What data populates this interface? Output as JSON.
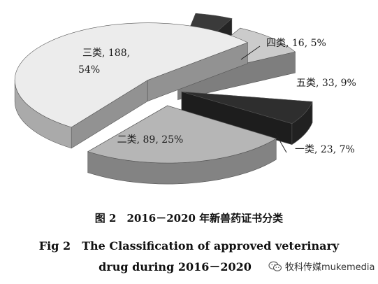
{
  "chart_data": {
    "type": "pie",
    "title": "",
    "three_d": true,
    "slices": [
      {
        "label": "一类, 23, 7%",
        "category": "一类",
        "value": 23,
        "percent": 7,
        "color": "#2e2e2e"
      },
      {
        "label": "二类, 89, 25%",
        "category": "二类",
        "value": 89,
        "percent": 25,
        "color": "#b6b6b6"
      },
      {
        "label": "三类, 188, 54%",
        "category": "三类",
        "value": 188,
        "percent": 54,
        "color": "#ececec"
      },
      {
        "label": "四类, 16, 5%",
        "category": "四类",
        "value": 16,
        "percent": 5,
        "color": "#3a3a3a"
      },
      {
        "label": "五类, 33, 9%",
        "category": "五类",
        "value": 33,
        "percent": 9,
        "color": "#cbcbcb"
      }
    ]
  },
  "caption": {
    "cn": "图 2　2016－2020 年新兽药证书分类",
    "en_line1": "Fig 2　The Classification of approved veterinary",
    "en_line2": "drug during 2016－2020"
  },
  "watermark": {
    "text": "牧科传媒mukemedia",
    "icon": "wechat-icon"
  }
}
